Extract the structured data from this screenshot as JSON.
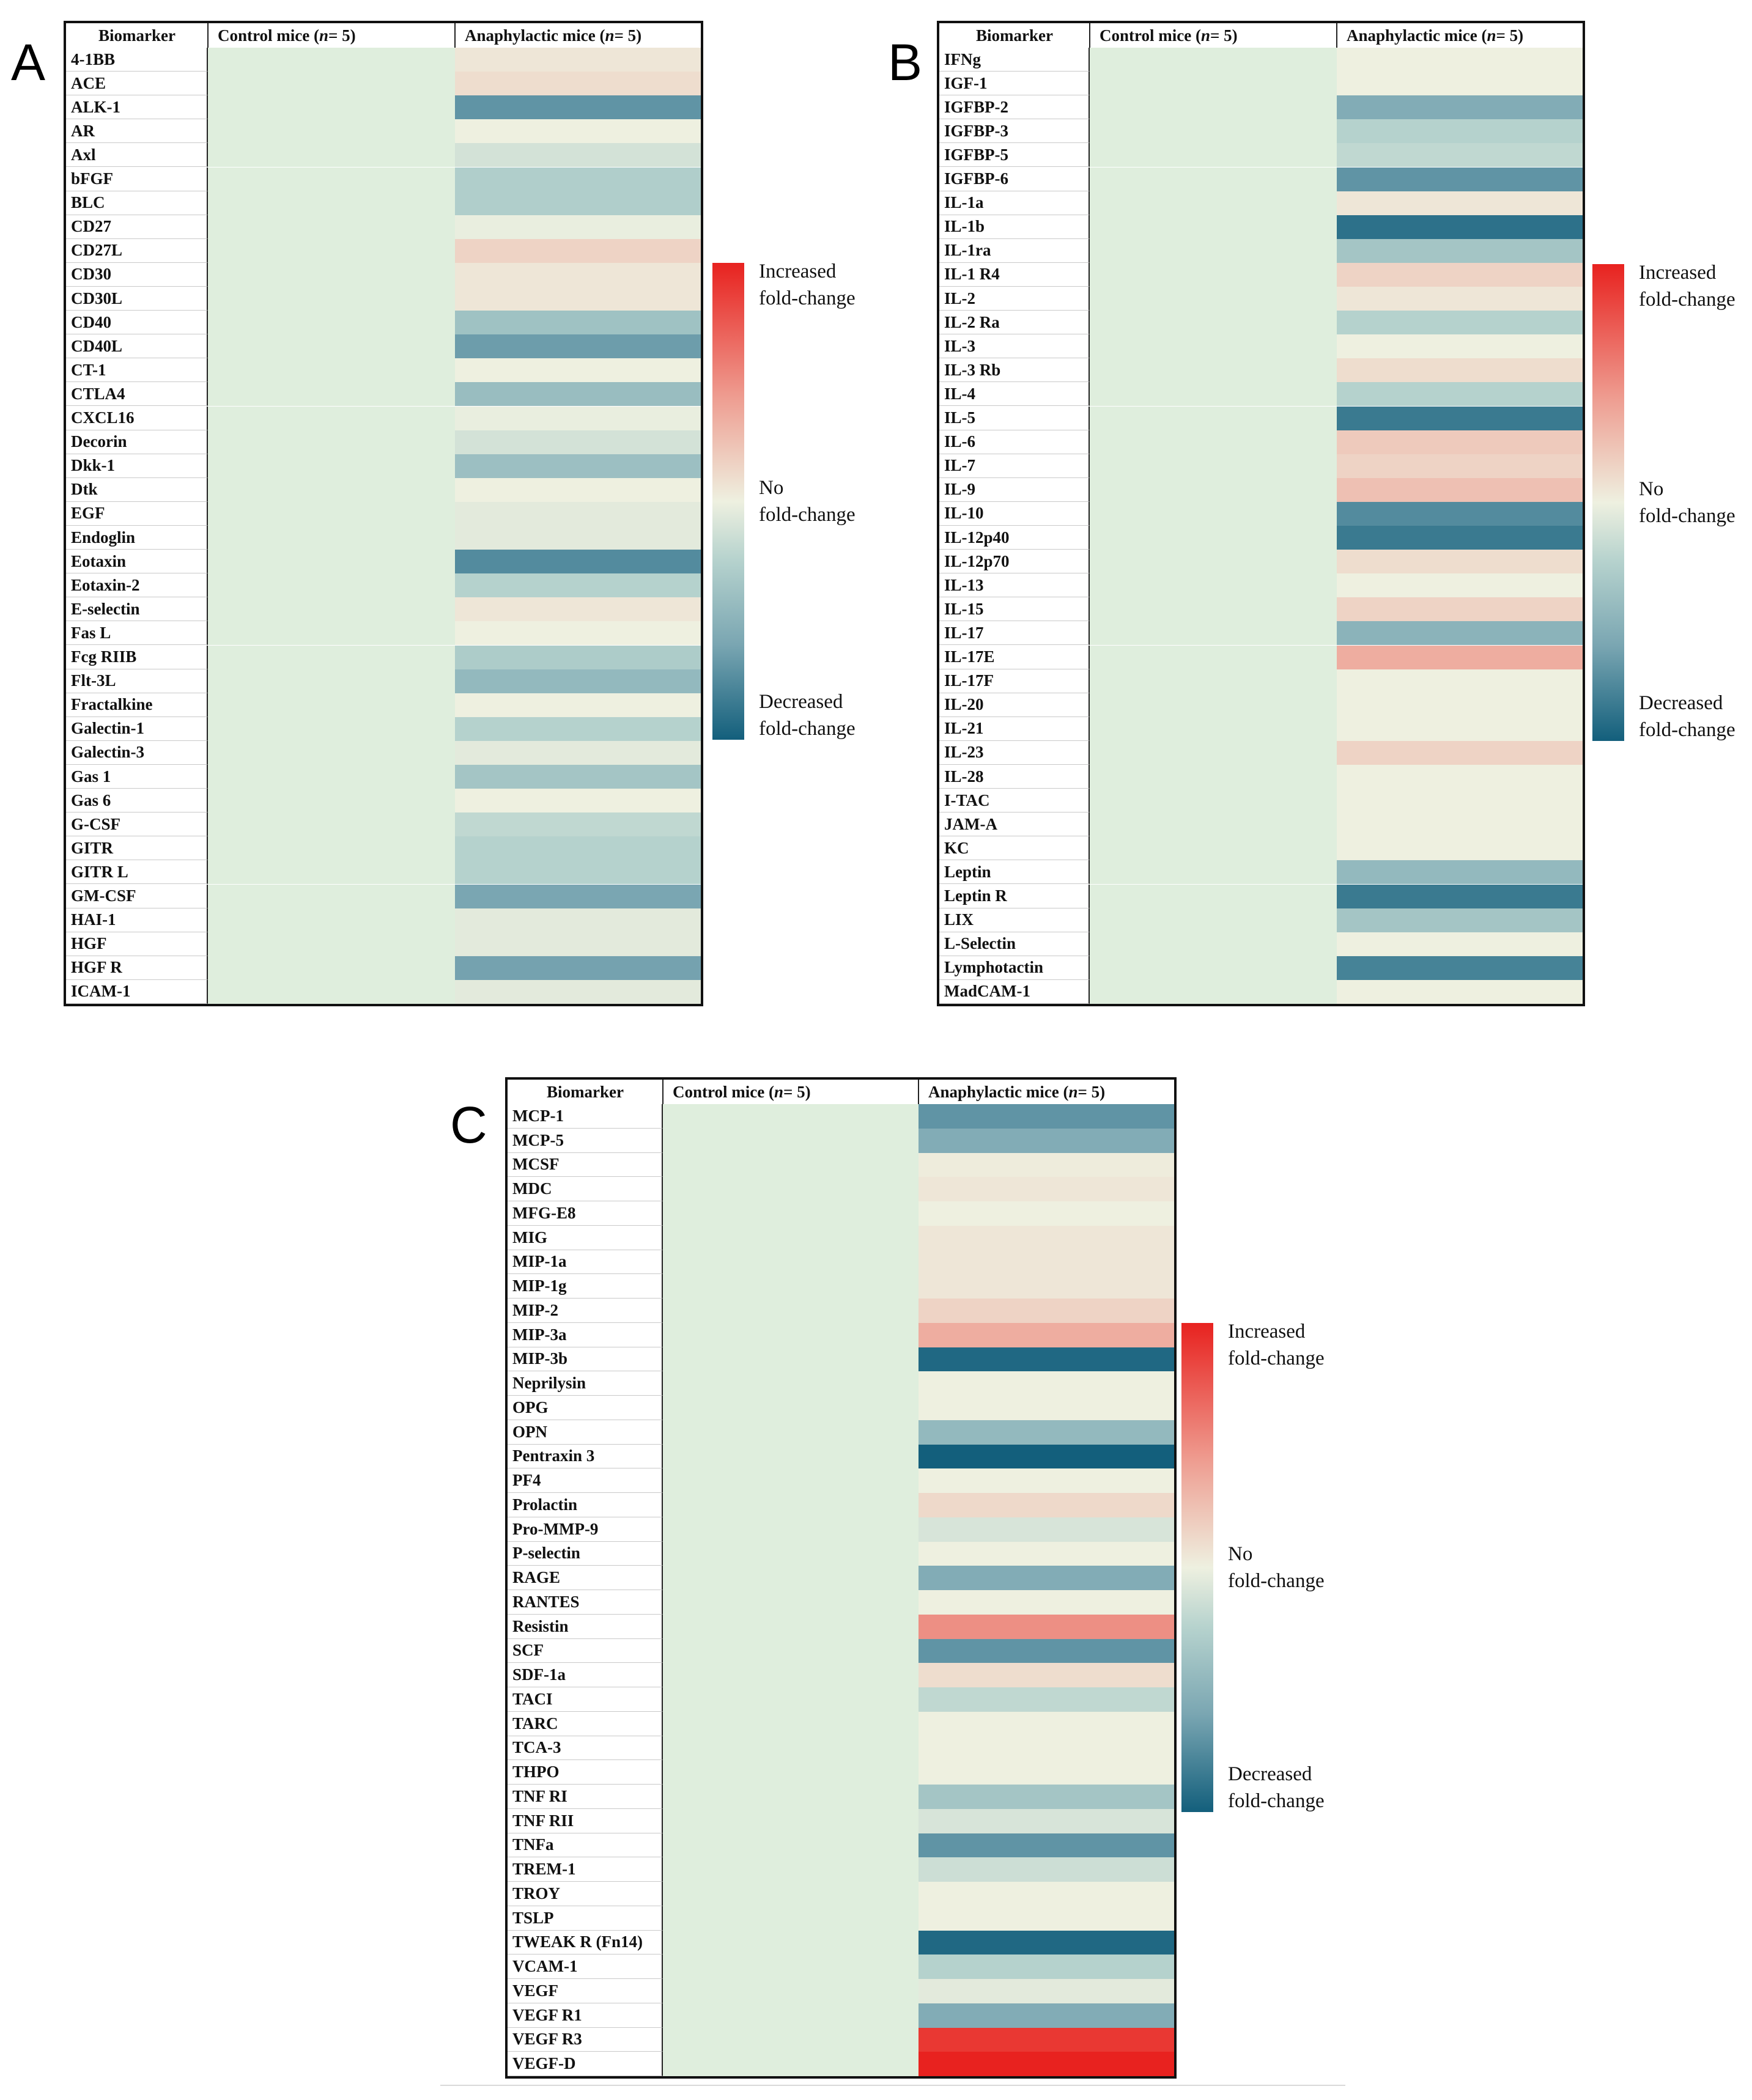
{
  "legend": {
    "increased": [
      "Increased",
      "fold-change"
    ],
    "none": [
      "No",
      "fold-change"
    ],
    "decreased": [
      "Decreased",
      "fold-change"
    ],
    "scale": {
      "colors": [
        "#e8221f",
        "#ee9c90",
        "#eef0e0",
        "#b7d3ce",
        "#7aa6b2",
        "#135f7c"
      ],
      "min": -1,
      "max": 1
    }
  },
  "chart_data": [
    {
      "type": "heatmap",
      "panel": "A",
      "headers": [
        "Biomarker",
        "Control mice (",
        "n",
        " = 5)",
        "Anaphylactic mice (",
        "n",
        " = 5)"
      ],
      "columns": [
        "Control mice (n = 5)",
        "Anaphylactic mice (n = 5)"
      ],
      "value_range": [
        -1,
        1
      ],
      "rows": [
        "4-1BB",
        "ACE",
        "ALK-1",
        "AR",
        "Axl",
        "bFGF",
        "BLC",
        "CD27",
        "CD27L",
        "CD30",
        "CD30L",
        "CD40",
        "CD40L",
        "CT-1",
        "CTLA4",
        "CXCL16",
        "Decorin",
        "Dkk-1",
        "Dtk",
        "EGF",
        "Endoglin",
        "Eotaxin",
        "Eotaxin-2",
        "E-selectin",
        "Fas L",
        "Fcg RIIB",
        "Flt-3L",
        "Fractalkine",
        "Galectin-1",
        "Galectin-3",
        "Gas 1",
        "Gas 6",
        "G-CSF",
        "GITR",
        "GITR L",
        "GM-CSF",
        "HAI-1",
        "HGF",
        "HGF R",
        "ICAM-1"
      ],
      "control": [
        0,
        0,
        0,
        0,
        0,
        0,
        0,
        0,
        0,
        0,
        0,
        0,
        0,
        0,
        0,
        0,
        0,
        0,
        0,
        0,
        0,
        0,
        0,
        0,
        0,
        0,
        0,
        0,
        0,
        0,
        0,
        0,
        0,
        0,
        0,
        0,
        0,
        0,
        0,
        0
      ],
      "anaphylactic": [
        0.05,
        0.1,
        -0.7,
        0,
        -0.12,
        -0.28,
        -0.28,
        -0.02,
        0.15,
        0.05,
        0.05,
        -0.38,
        -0.65,
        0,
        -0.42,
        -0.02,
        -0.12,
        -0.4,
        0,
        -0.05,
        -0.05,
        -0.75,
        -0.25,
        0.05,
        0,
        -0.3,
        -0.45,
        0,
        -0.25,
        -0.05,
        -0.35,
        0,
        -0.2,
        -0.25,
        -0.25,
        -0.6,
        -0.05,
        -0.05,
        -0.62,
        -0.05
      ]
    },
    {
      "type": "heatmap",
      "panel": "B",
      "headers": [
        "Biomarker",
        "Control mice (",
        "n",
        " = 5)",
        "Anaphylactic mice (",
        "n",
        " = 5)"
      ],
      "columns": [
        "Control mice (n = 5)",
        "Anaphylactic mice (n = 5)"
      ],
      "value_range": [
        -1,
        1
      ],
      "rows": [
        "IFNg",
        "IGF-1",
        "IGFBP-2",
        "IGFBP-3",
        "IGFBP-5",
        "IGFBP-6",
        "IL-1a",
        "IL-1b",
        "IL-1ra",
        "IL-1 R4",
        "IL-2",
        "IL-2 Ra",
        "IL-3",
        "IL-3 Rb",
        "IL-4",
        "IL-5",
        "IL-6",
        "IL-7",
        "IL-9",
        "IL-10",
        "IL-12p40",
        "IL-12p70",
        "IL-13",
        "IL-15",
        "IL-17",
        "IL-17E",
        "IL-17F",
        "IL-20",
        "IL-21",
        "IL-23",
        "IL-28",
        "I-TAC",
        "JAM-A",
        "KC",
        "Leptin",
        "Leptin R",
        "LIX",
        "L-Selectin",
        "Lymphotactin",
        "MadCAM-1"
      ],
      "control": [
        0,
        0,
        0,
        0,
        0,
        0,
        0,
        0,
        0,
        0,
        0,
        0,
        0,
        0,
        0,
        0,
        0,
        0,
        0,
        0,
        0,
        0,
        0,
        0,
        0,
        0,
        0,
        0,
        0,
        0,
        0,
        0,
        0,
        0,
        0,
        0,
        0,
        0,
        0,
        0
      ],
      "anaphylactic": [
        0,
        0,
        -0.55,
        -0.25,
        -0.2,
        -0.7,
        0.05,
        -0.9,
        -0.35,
        0.15,
        0.05,
        -0.25,
        0,
        0.1,
        -0.25,
        -0.85,
        0.2,
        0.15,
        0.25,
        -0.75,
        -0.85,
        0.1,
        0,
        0.15,
        -0.5,
        0.35,
        0,
        0,
        0,
        0.15,
        0,
        0,
        0,
        0,
        -0.45,
        -0.85,
        -0.35,
        0,
        -0.8,
        0
      ]
    },
    {
      "type": "heatmap",
      "panel": "C",
      "headers": [
        "Biomarker",
        "Control mice (",
        "n",
        " = 5)",
        "Anaphylactic mice (",
        "n",
        " = 5)"
      ],
      "columns": [
        "Control mice (n = 5)",
        "Anaphylactic mice (n = 5)"
      ],
      "value_range": [
        -1,
        1
      ],
      "rows": [
        "MCP-1",
        "MCP-5",
        "MCSF",
        "MDC",
        "MFG-E8",
        "MIG",
        "MIP-1a",
        "MIP-1g",
        "MIP-2",
        "MIP-3a",
        "MIP-3b",
        "Neprilysin",
        "OPG",
        "OPN",
        "Pentraxin 3",
        "PF4",
        "Prolactin",
        "Pro-MMP-9",
        "P-selectin",
        "RAGE",
        "RANTES",
        "Resistin",
        "SCF",
        "SDF-1a",
        "TACI",
        "TARC",
        "TCA-3",
        "THPO",
        "TNF RI",
        "TNF RII",
        "TNFa",
        "TREM-1",
        "TROY",
        "TSLP",
        "TWEAK R (Fn14)",
        "VCAM-1",
        "VEGF",
        "VEGF R1",
        "VEGF R3",
        "VEGF-D"
      ],
      "control": [
        0,
        0,
        0,
        0,
        0,
        0,
        0,
        0,
        0,
        0,
        0,
        0,
        0,
        0,
        0,
        0,
        0,
        0,
        0,
        0,
        0,
        0,
        0,
        0,
        0,
        0,
        0,
        0,
        0,
        0,
        0,
        0,
        0,
        0,
        0,
        0,
        0,
        0,
        0,
        0
      ],
      "anaphylactic": [
        -0.7,
        -0.55,
        0.02,
        0.05,
        0,
        0.05,
        0.05,
        0.05,
        0.15,
        0.35,
        -0.95,
        0,
        0,
        -0.45,
        -1,
        0,
        0.12,
        -0.1,
        0,
        -0.55,
        0,
        0.5,
        -0.7,
        0.1,
        -0.2,
        0,
        0,
        0,
        -0.35,
        -0.1,
        -0.7,
        -0.15,
        0,
        0,
        -0.95,
        -0.25,
        -0.05,
        -0.55,
        0.9,
        1
      ]
    }
  ]
}
